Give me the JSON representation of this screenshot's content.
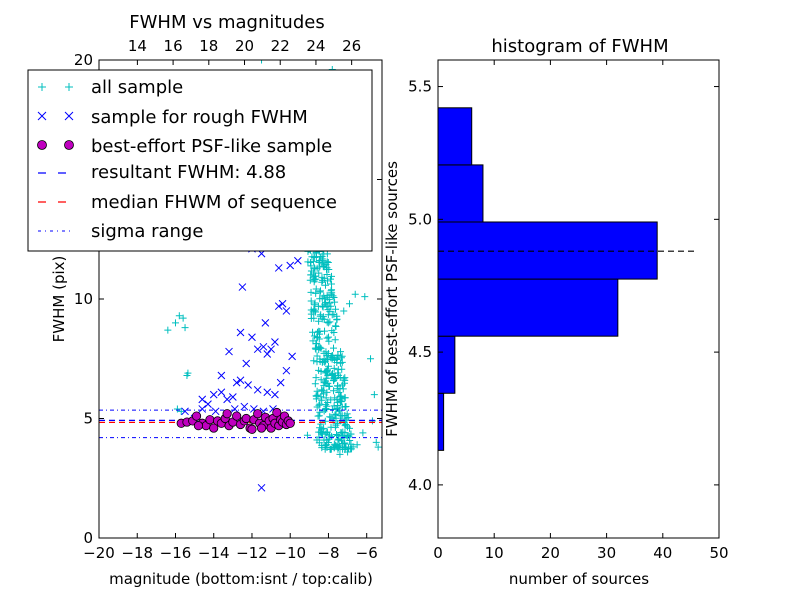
{
  "chart_data": [
    {
      "type": "scatter",
      "title": "FWHM vs magnitudes",
      "xlabel": "magnitude (bottom:isnt / top:calib)",
      "ylabel": "FWHM (pix)",
      "xlim": [
        -20,
        -5.2
      ],
      "ylim": [
        0,
        20
      ],
      "top_xlim": [
        11.85,
        27.7
      ],
      "x_ticks": [
        -20,
        -18,
        -16,
        -14,
        -12,
        -10,
        -8,
        -6
      ],
      "x_tick_labels": [
        "−20",
        "−18",
        "−16",
        "−14",
        "−12",
        "−10",
        "−8",
        "−6"
      ],
      "top_x_ticks": [
        14,
        16,
        18,
        20,
        22,
        24,
        26
      ],
      "top_x_tick_labels": [
        "14",
        "16",
        "18",
        "20",
        "22",
        "24",
        "26"
      ],
      "y_ticks": [
        0,
        5,
        10,
        15,
        20
      ],
      "y_tick_labels": [
        "0",
        "5",
        "10",
        "15",
        "20"
      ],
      "legend": {
        "placement": "upper-left",
        "entries": [
          "all sample",
          "sample for rough FWHM",
          "best-effort PSF-like sample",
          "resultant FWHM: 4.88",
          "median FHWM of sequence",
          "sigma range"
        ]
      },
      "resultant_fwhm": 4.88,
      "median_fwhm": 4.88,
      "sigma_range": [
        4.2,
        5.35
      ],
      "series": [
        {
          "name": "all sample",
          "marker": "plus",
          "color": "#00bfbf",
          "points": [
            [
              -16.4,
              8.7
            ],
            [
              -16.0,
              9.0
            ],
            [
              -15.8,
              9.3
            ],
            [
              -15.6,
              9.2
            ],
            [
              -15.5,
              8.8
            ],
            [
              -15.4,
              6.8
            ],
            [
              -15.35,
              6.9
            ],
            [
              -15.9,
              5.4
            ],
            [
              -15.7,
              5.3
            ],
            [
              -11.5,
              20.0
            ],
            [
              -10.9,
              19.4
            ],
            [
              -7.8,
              19.6
            ],
            [
              -7.3,
              19.0
            ],
            [
              -10.3,
              17.8
            ],
            [
              -9.6,
              18.3
            ],
            [
              -9.2,
              18.0
            ],
            [
              -8.4,
              18.2
            ],
            [
              -9.8,
              16.6
            ],
            [
              -9.0,
              16.9
            ],
            [
              -8.6,
              17.2
            ],
            [
              -7.9,
              16.4
            ],
            [
              -10.0,
              15.2
            ],
            [
              -9.4,
              15.4
            ],
            [
              -8.8,
              15.9
            ],
            [
              -8.2,
              15.1
            ],
            [
              -7.5,
              15.6
            ],
            [
              -9.6,
              14.2
            ],
            [
              -9.1,
              14.6
            ],
            [
              -8.5,
              13.8
            ],
            [
              -8.0,
              14.3
            ],
            [
              -7.6,
              13.5
            ],
            [
              -6.6,
              10.2
            ],
            [
              -6.1,
              10.1
            ],
            [
              -7.2,
              9.5
            ],
            [
              -6.9,
              9.8
            ],
            [
              -5.8,
              7.5
            ],
            [
              -5.6,
              6.0
            ],
            [
              -5.5,
              4.0
            ],
            [
              -5.4,
              3.8
            ],
            [
              -5.7,
              4.9
            ],
            [
              -6.2,
              4.4
            ],
            [
              -6.5,
              3.9
            ],
            [
              -7.0,
              3.6
            ],
            [
              -7.4,
              3.5
            ],
            [
              -7.7,
              3.8
            ],
            [
              -8.1,
              3.9
            ],
            [
              -8.6,
              4.1
            ],
            [
              -9.1,
              4.3
            ]
          ],
          "dense_cloud": {
            "note": "many points between x=-10 and x=-6.3, y=4 to 13",
            "x_range": [
              -10.1,
              -6.3
            ],
            "y_range": [
              3.7,
              13.5
            ],
            "count": 420
          }
        },
        {
          "name": "sample for rough FWHM",
          "marker": "x",
          "color": "#0000ff",
          "points": [
            [
              -11.5,
              2.1
            ],
            [
              -15.5,
              5.3
            ],
            [
              -15.0,
              5.0
            ],
            [
              -14.6,
              5.8
            ],
            [
              -14.3,
              5.6
            ],
            [
              -14.0,
              6.0
            ],
            [
              -13.6,
              6.1
            ],
            [
              -13.3,
              5.8
            ],
            [
              -13.0,
              5.9
            ],
            [
              -12.8,
              6.5
            ],
            [
              -12.6,
              6.6
            ],
            [
              -12.3,
              7.3
            ],
            [
              -12.0,
              8.4
            ],
            [
              -11.7,
              7.9
            ],
            [
              -11.4,
              8.0
            ],
            [
              -11.2,
              7.7
            ],
            [
              -11.0,
              7.9
            ],
            [
              -10.8,
              8.2
            ],
            [
              -10.6,
              9.7
            ],
            [
              -10.4,
              9.8
            ],
            [
              -10.2,
              9.5
            ],
            [
              -10.0,
              11.4
            ],
            [
              -10.6,
              11.3
            ],
            [
              -11.5,
              11.9
            ],
            [
              -12.0,
              12.1
            ],
            [
              -10.8,
              13.3
            ],
            [
              -10.3,
              15.1
            ],
            [
              -11.0,
              12.3
            ],
            [
              -12.6,
              8.6
            ],
            [
              -13.2,
              7.8
            ],
            [
              -13.6,
              6.8
            ],
            [
              -12.2,
              6.4
            ],
            [
              -11.7,
              6.2
            ],
            [
              -11.2,
              6.1
            ],
            [
              -10.8,
              6.0
            ],
            [
              -10.5,
              6.5
            ],
            [
              -10.2,
              7.0
            ],
            [
              -9.9,
              7.6
            ],
            [
              -14.6,
              5.4
            ],
            [
              -13.9,
              5.3
            ],
            [
              -12.9,
              5.4
            ],
            [
              -12.4,
              5.5
            ],
            [
              -11.9,
              5.4
            ],
            [
              -11.4,
              5.3
            ],
            [
              -10.9,
              5.4
            ],
            [
              -9.8,
              12.7
            ],
            [
              -9.6,
              11.6
            ],
            [
              -10.1,
              13.8
            ],
            [
              -11.3,
              9.0
            ],
            [
              -12.5,
              10.5
            ]
          ]
        },
        {
          "name": "best-effort PSF-like sample",
          "marker": "circle",
          "color": "#bf00bf",
          "points": [
            [
              -15.7,
              4.8
            ],
            [
              -15.4,
              4.85
            ],
            [
              -15.1,
              4.9
            ],
            [
              -14.9,
              5.1
            ],
            [
              -14.6,
              4.8
            ],
            [
              -14.4,
              4.7
            ],
            [
              -14.2,
              4.95
            ],
            [
              -14.0,
              4.6
            ],
            [
              -13.8,
              4.9
            ],
            [
              -13.6,
              4.8
            ],
            [
              -13.4,
              5.0
            ],
            [
              -13.2,
              4.7
            ],
            [
              -13.0,
              4.85
            ],
            [
              -12.8,
              5.1
            ],
            [
              -12.6,
              4.75
            ],
            [
              -12.4,
              4.9
            ],
            [
              -12.3,
              5.0
            ],
            [
              -12.1,
              4.6
            ],
            [
              -11.9,
              4.95
            ],
            [
              -11.7,
              5.2
            ],
            [
              -11.6,
              4.8
            ],
            [
              -11.4,
              4.7
            ],
            [
              -11.3,
              5.05
            ],
            [
              -11.1,
              4.9
            ],
            [
              -11.0,
              4.6
            ],
            [
              -10.9,
              5.0
            ],
            [
              -10.8,
              4.8
            ],
            [
              -10.7,
              5.25
            ],
            [
              -10.6,
              4.7
            ],
            [
              -10.5,
              4.95
            ],
            [
              -10.4,
              4.85
            ],
            [
              -10.3,
              5.1
            ],
            [
              -10.2,
              4.75
            ],
            [
              -10.1,
              4.9
            ],
            [
              -10.0,
              4.8
            ],
            [
              -14.8,
              4.7
            ],
            [
              -13.3,
              5.2
            ],
            [
              -12.0,
              4.55
            ],
            [
              -11.5,
              4.6
            ]
          ]
        }
      ]
    },
    {
      "type": "bar",
      "orientation": "horizontal",
      "title": "histogram of FWHM",
      "xlabel": "number of sources",
      "ylabel": "FWHM of best-effort PSF-like sources",
      "xlim": [
        0,
        50
      ],
      "ylim": [
        3.8,
        5.6
      ],
      "x_ticks": [
        0,
        10,
        20,
        30,
        40,
        50
      ],
      "x_tick_labels": [
        "0",
        "10",
        "20",
        "30",
        "40",
        "50"
      ],
      "y_ticks": [
        4.0,
        4.5,
        5.0,
        5.5
      ],
      "y_tick_labels": [
        "4.0",
        "4.5",
        "5.0",
        "5.5"
      ],
      "bar_color": "#0000ff",
      "bins": [
        {
          "from": 4.13,
          "to": 4.345,
          "count": 1
        },
        {
          "from": 4.345,
          "to": 4.56,
          "count": 3
        },
        {
          "from": 4.56,
          "to": 4.775,
          "count": 32
        },
        {
          "from": 4.775,
          "to": 4.99,
          "count": 39
        },
        {
          "from": 4.99,
          "to": 5.205,
          "count": 8
        },
        {
          "from": 5.205,
          "to": 5.42,
          "count": 6
        }
      ],
      "reference_line": {
        "y": 4.88,
        "x_range": [
          0,
          46
        ],
        "style": "dashed",
        "color": "#000000"
      }
    }
  ]
}
